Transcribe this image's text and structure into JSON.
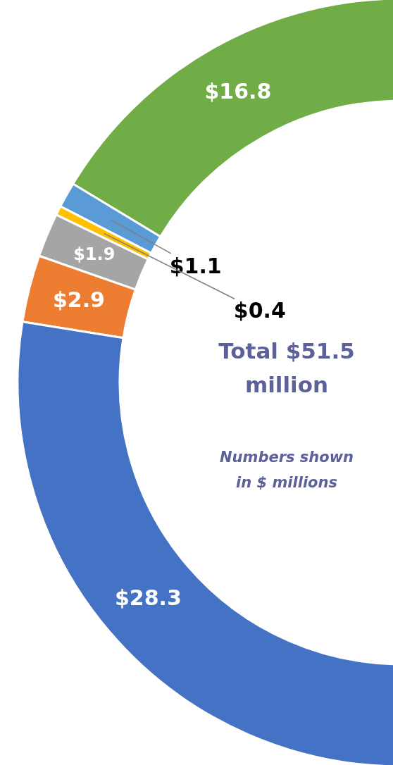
{
  "chart_data": {
    "type": "donut",
    "categories": [
      null,
      null,
      null,
      null,
      null,
      null
    ],
    "values": [
      16.8,
      1.1,
      0.4,
      1.9,
      2.9,
      28.3
    ],
    "colors": [
      "#70ad47",
      "#5b9bd5",
      "#ffc000",
      "#a5a5a5",
      "#ed7d31",
      "#4472c4"
    ],
    "value_labels": [
      "$16.8",
      "$1.1",
      "$0.4",
      "$1.9",
      "$2.9",
      "$28.3"
    ],
    "annotations": [
      "Total $51.5 million",
      "Numbers shown in $ millions"
    ]
  }
}
